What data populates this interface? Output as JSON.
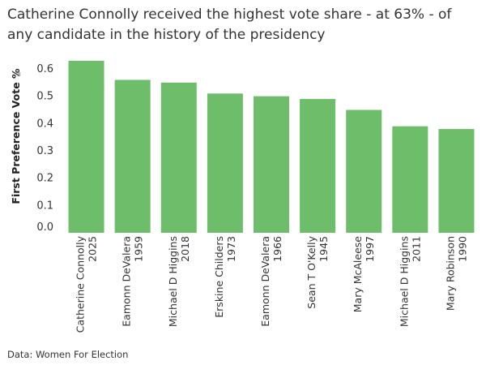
{
  "chart_data": {
    "type": "bar",
    "title": "Catherine Connolly received the highest vote share - at 63% - of any candidate in the history of the presidency",
    "ylabel": "First Preference Vote %",
    "xlabel": "",
    "categories": [
      [
        "Catherine Connolly",
        "2025"
      ],
      [
        "Eamonn DeValera",
        "1959"
      ],
      [
        "Michael D Higgins",
        "2018"
      ],
      [
        "Erskine Childers",
        "1973"
      ],
      [
        "Eamonn DeValera",
        "1966"
      ],
      [
        "Sean T O'Kelly",
        "1945"
      ],
      [
        "Mary McAleese",
        "1997"
      ],
      [
        "Michael D Higgins",
        "2011"
      ],
      [
        "Mary Robinson",
        "1990"
      ]
    ],
    "values": [
      0.63,
      0.56,
      0.55,
      0.51,
      0.5,
      0.49,
      0.45,
      0.39,
      0.38
    ],
    "yticks": [
      "0.0",
      "0.1",
      "0.2",
      "0.3",
      "0.4",
      "0.5",
      "0.6"
    ],
    "ylim": [
      0,
      0.65
    ],
    "grid": false,
    "bar_color": "#6dbd6a"
  },
  "footer": {
    "source": "Data: Women For Election"
  }
}
